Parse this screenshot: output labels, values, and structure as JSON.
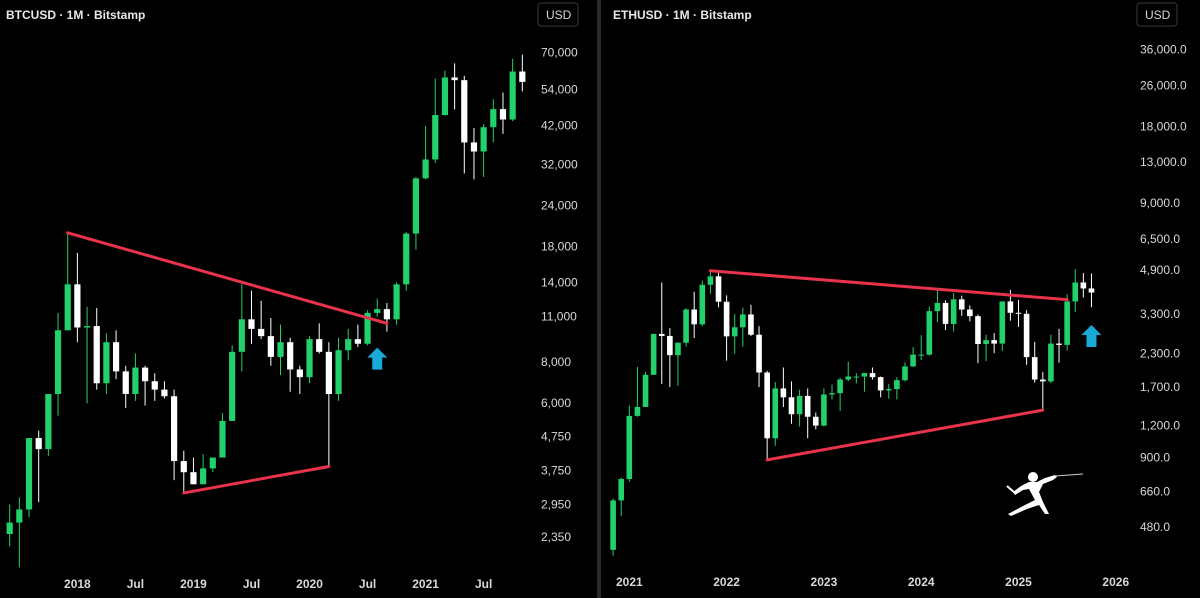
{
  "colors": {
    "up": "#22d16b",
    "down": "#ffffff",
    "trendline": "#e8334a",
    "arrow": "#19a9d6",
    "background": "#000000",
    "divider": "#2a2a2a"
  },
  "logo": {
    "icon": "fencer-icon"
  },
  "chart_data": [
    {
      "type": "candlestick",
      "title": "BTCUSD · 1M · Bitstamp",
      "currency_label": "USD",
      "y_scale": "log",
      "ylim": [
        2000,
        82000
      ],
      "y_ticks": [
        "70,000",
        "54,000",
        "42,000",
        "32,000",
        "24,000",
        "18,000",
        "14,000",
        "11,000",
        "8,000",
        "6,000",
        "4,750",
        "3,750",
        "2,950",
        "2,350"
      ],
      "x_ticks": [
        "2018",
        "Jul",
        "2019",
        "Jul",
        "2020",
        "Jul",
        "2021",
        "Jul"
      ],
      "x_tick_dates": [
        "2018-01",
        "2018-07",
        "2019-01",
        "2019-07",
        "2020-01",
        "2020-07",
        "2021-01",
        "2021-07"
      ],
      "candles": [
        {
          "d": "2017-06",
          "o": 2400,
          "h": 2950,
          "l": 2200,
          "c": 2600
        },
        {
          "d": "2017-07",
          "o": 2600,
          "h": 3100,
          "l": 1900,
          "c": 2850
        },
        {
          "d": "2017-08",
          "o": 2850,
          "h": 4700,
          "l": 2700,
          "c": 4700
        },
        {
          "d": "2017-09",
          "o": 4700,
          "h": 4950,
          "l": 3000,
          "c": 4350
        },
        {
          "d": "2017-10",
          "o": 4350,
          "h": 6400,
          "l": 4150,
          "c": 6400
        },
        {
          "d": "2017-11",
          "o": 6400,
          "h": 11300,
          "l": 5500,
          "c": 10000
        },
        {
          "d": "2017-12",
          "o": 10000,
          "h": 19800,
          "l": 10000,
          "c": 13800
        },
        {
          "d": "2018-01",
          "o": 13800,
          "h": 17200,
          "l": 9200,
          "c": 10200
        },
        {
          "d": "2018-02",
          "o": 10200,
          "h": 11800,
          "l": 6000,
          "c": 10300
        },
        {
          "d": "2018-03",
          "o": 10300,
          "h": 11700,
          "l": 6600,
          "c": 6900
        },
        {
          "d": "2018-04",
          "o": 6900,
          "h": 9800,
          "l": 6400,
          "c": 9200
        },
        {
          "d": "2018-05",
          "o": 9200,
          "h": 10000,
          "l": 7100,
          "c": 7500
        },
        {
          "d": "2018-06",
          "o": 7500,
          "h": 7800,
          "l": 5800,
          "c": 6400
        },
        {
          "d": "2018-07",
          "o": 6400,
          "h": 8500,
          "l": 6100,
          "c": 7700
        },
        {
          "d": "2018-08",
          "o": 7700,
          "h": 7800,
          "l": 5900,
          "c": 7000
        },
        {
          "d": "2018-09",
          "o": 7000,
          "h": 7400,
          "l": 6100,
          "c": 6600
        },
        {
          "d": "2018-10",
          "o": 6600,
          "h": 7000,
          "l": 6200,
          "c": 6300
        },
        {
          "d": "2018-11",
          "o": 6300,
          "h": 6600,
          "l": 3500,
          "c": 4000
        },
        {
          "d": "2018-12",
          "o": 4000,
          "h": 4300,
          "l": 3200,
          "c": 3700
        },
        {
          "d": "2019-01",
          "o": 3700,
          "h": 4100,
          "l": 3400,
          "c": 3400
        },
        {
          "d": "2019-02",
          "o": 3400,
          "h": 4200,
          "l": 3400,
          "c": 3800
        },
        {
          "d": "2019-03",
          "o": 3800,
          "h": 4100,
          "l": 3700,
          "c": 4100
        },
        {
          "d": "2019-04",
          "o": 4100,
          "h": 5600,
          "l": 4100,
          "c": 5300
        },
        {
          "d": "2019-05",
          "o": 5300,
          "h": 9000,
          "l": 5300,
          "c": 8600
        },
        {
          "d": "2019-06",
          "o": 8600,
          "h": 13800,
          "l": 7500,
          "c": 10800
        },
        {
          "d": "2019-07",
          "o": 10800,
          "h": 13200,
          "l": 9100,
          "c": 10100
        },
        {
          "d": "2019-08",
          "o": 10100,
          "h": 12300,
          "l": 9400,
          "c": 9600
        },
        {
          "d": "2019-09",
          "o": 9600,
          "h": 10900,
          "l": 7800,
          "c": 8300
        },
        {
          "d": "2019-10",
          "o": 8300,
          "h": 10400,
          "l": 7300,
          "c": 9200
        },
        {
          "d": "2019-11",
          "o": 9200,
          "h": 9500,
          "l": 6500,
          "c": 7600
        },
        {
          "d": "2019-12",
          "o": 7600,
          "h": 7800,
          "l": 6400,
          "c": 7200
        },
        {
          "d": "2020-01",
          "o": 7200,
          "h": 9600,
          "l": 6900,
          "c": 9400
        },
        {
          "d": "2020-02",
          "o": 9400,
          "h": 10500,
          "l": 8500,
          "c": 8600
        },
        {
          "d": "2020-03",
          "o": 8600,
          "h": 9200,
          "l": 3850,
          "c": 6400
        },
        {
          "d": "2020-04",
          "o": 6400,
          "h": 9500,
          "l": 6100,
          "c": 8700
        },
        {
          "d": "2020-05",
          "o": 8700,
          "h": 10100,
          "l": 8100,
          "c": 9400
        },
        {
          "d": "2020-06",
          "o": 9400,
          "h": 10400,
          "l": 8900,
          "c": 9100
        },
        {
          "d": "2020-07",
          "o": 9100,
          "h": 11500,
          "l": 9000,
          "c": 11300
        },
        {
          "d": "2020-08",
          "o": 11300,
          "h": 12500,
          "l": 11000,
          "c": 11600
        },
        {
          "d": "2020-09",
          "o": 11600,
          "h": 12100,
          "l": 9900,
          "c": 10800
        },
        {
          "d": "2020-10",
          "o": 10800,
          "h": 14000,
          "l": 10400,
          "c": 13800
        },
        {
          "d": "2020-11",
          "o": 13800,
          "h": 19900,
          "l": 13200,
          "c": 19700
        },
        {
          "d": "2020-12",
          "o": 19700,
          "h": 29300,
          "l": 17600,
          "c": 29000
        },
        {
          "d": "2021-01",
          "o": 29000,
          "h": 41900,
          "l": 28800,
          "c": 33100
        },
        {
          "d": "2021-02",
          "o": 33100,
          "h": 58300,
          "l": 32300,
          "c": 45200
        },
        {
          "d": "2021-03",
          "o": 45200,
          "h": 61700,
          "l": 45000,
          "c": 58800
        },
        {
          "d": "2021-04",
          "o": 58800,
          "h": 64900,
          "l": 47000,
          "c": 57700
        },
        {
          "d": "2021-05",
          "o": 57700,
          "h": 59500,
          "l": 30000,
          "c": 37300
        },
        {
          "d": "2021-06",
          "o": 37300,
          "h": 41300,
          "l": 28800,
          "c": 35000
        },
        {
          "d": "2021-07",
          "o": 35000,
          "h": 42400,
          "l": 29300,
          "c": 41500
        },
        {
          "d": "2021-08",
          "o": 41500,
          "h": 50500,
          "l": 37300,
          "c": 47100
        },
        {
          "d": "2021-09",
          "o": 47100,
          "h": 52900,
          "l": 39600,
          "c": 43800
        },
        {
          "d": "2021-10",
          "o": 43800,
          "h": 67000,
          "l": 43300,
          "c": 61300
        },
        {
          "d": "2021-11",
          "o": 61300,
          "h": 69000,
          "l": 53300,
          "c": 57000
        }
      ],
      "trendlines": [
        {
          "from": {
            "d": "2017-12",
            "v": 19800
          },
          "to": {
            "d": "2020-09",
            "v": 10500
          }
        },
        {
          "from": {
            "d": "2018-12",
            "v": 3200
          },
          "to": {
            "d": "2020-03",
            "v": 3850
          }
        }
      ],
      "arrows": [
        {
          "d": "2020-08",
          "v": 8200,
          "direction": "up"
        }
      ]
    },
    {
      "type": "candlestick",
      "title": "ETHUSD · 1M · Bitstamp",
      "currency_label": "USD",
      "y_scale": "log",
      "ylim": [
        340,
        43000
      ],
      "y_ticks": [
        "36,000.0",
        "26,000.0",
        "18,000.0",
        "13,000.0",
        "9,000.0",
        "6,500.0",
        "4,900.0",
        "3,300.0",
        "2,300.0",
        "1,700.0",
        "1,200.0",
        "900.0",
        "660.0",
        "480.0"
      ],
      "x_ticks": [
        "2021",
        "2022",
        "2023",
        "2024",
        "2025",
        "2026"
      ],
      "x_tick_dates": [
        "2021-01",
        "2022-01",
        "2023-01",
        "2024-01",
        "2025-01",
        "2026-01"
      ],
      "candles": [
        {
          "d": "2020-11",
          "o": 390,
          "h": 620,
          "l": 370,
          "c": 610
        },
        {
          "d": "2020-12",
          "o": 610,
          "h": 750,
          "l": 530,
          "c": 740
        },
        {
          "d": "2021-01",
          "o": 740,
          "h": 1440,
          "l": 720,
          "c": 1310
        },
        {
          "d": "2021-02",
          "o": 1310,
          "h": 2040,
          "l": 1300,
          "c": 1420
        },
        {
          "d": "2021-03",
          "o": 1420,
          "h": 1950,
          "l": 1420,
          "c": 1900
        },
        {
          "d": "2021-04",
          "o": 1900,
          "h": 2760,
          "l": 1900,
          "c": 2750
        },
        {
          "d": "2021-05",
          "o": 2750,
          "h": 4380,
          "l": 1750,
          "c": 2700
        },
        {
          "d": "2021-06",
          "o": 2700,
          "h": 2900,
          "l": 1700,
          "c": 2270
        },
        {
          "d": "2021-07",
          "o": 2270,
          "h": 2550,
          "l": 1720,
          "c": 2540
        },
        {
          "d": "2021-08",
          "o": 2540,
          "h": 3470,
          "l": 2450,
          "c": 3430
        },
        {
          "d": "2021-09",
          "o": 3430,
          "h": 4030,
          "l": 2650,
          "c": 3000
        },
        {
          "d": "2021-10",
          "o": 3000,
          "h": 4460,
          "l": 2950,
          "c": 4290
        },
        {
          "d": "2021-11",
          "o": 4290,
          "h": 4870,
          "l": 3960,
          "c": 4630
        },
        {
          "d": "2021-12",
          "o": 4630,
          "h": 4780,
          "l": 3500,
          "c": 3680
        },
        {
          "d": "2022-01",
          "o": 3680,
          "h": 3900,
          "l": 2160,
          "c": 2690
        },
        {
          "d": "2022-02",
          "o": 2690,
          "h": 3290,
          "l": 2300,
          "c": 2920
        },
        {
          "d": "2022-03",
          "o": 2920,
          "h": 3490,
          "l": 2450,
          "c": 3280
        },
        {
          "d": "2022-04",
          "o": 3280,
          "h": 3580,
          "l": 2700,
          "c": 2730
        },
        {
          "d": "2022-05",
          "o": 2730,
          "h": 2950,
          "l": 1700,
          "c": 1940
        },
        {
          "d": "2022-06",
          "o": 1940,
          "h": 1970,
          "l": 880,
          "c": 1070
        },
        {
          "d": "2022-07",
          "o": 1070,
          "h": 1780,
          "l": 1000,
          "c": 1680
        },
        {
          "d": "2022-08",
          "o": 1680,
          "h": 2030,
          "l": 1420,
          "c": 1550
        },
        {
          "d": "2022-09",
          "o": 1550,
          "h": 1790,
          "l": 1220,
          "c": 1330
        },
        {
          "d": "2022-10",
          "o": 1330,
          "h": 1660,
          "l": 1190,
          "c": 1570
        },
        {
          "d": "2022-11",
          "o": 1570,
          "h": 1680,
          "l": 1070,
          "c": 1300
        },
        {
          "d": "2022-12",
          "o": 1300,
          "h": 1350,
          "l": 1160,
          "c": 1200
        },
        {
          "d": "2023-01",
          "o": 1200,
          "h": 1680,
          "l": 1190,
          "c": 1590
        },
        {
          "d": "2023-02",
          "o": 1590,
          "h": 1740,
          "l": 1520,
          "c": 1610
        },
        {
          "d": "2023-03",
          "o": 1610,
          "h": 1850,
          "l": 1370,
          "c": 1820
        },
        {
          "d": "2023-04",
          "o": 1820,
          "h": 2140,
          "l": 1790,
          "c": 1870
        },
        {
          "d": "2023-05",
          "o": 1870,
          "h": 1930,
          "l": 1760,
          "c": 1870
        },
        {
          "d": "2023-06",
          "o": 1870,
          "h": 1930,
          "l": 1630,
          "c": 1930
        },
        {
          "d": "2023-07",
          "o": 1930,
          "h": 2030,
          "l": 1820,
          "c": 1860
        },
        {
          "d": "2023-08",
          "o": 1860,
          "h": 1870,
          "l": 1550,
          "c": 1650
        },
        {
          "d": "2023-09",
          "o": 1650,
          "h": 1750,
          "l": 1530,
          "c": 1670
        },
        {
          "d": "2023-10",
          "o": 1670,
          "h": 1860,
          "l": 1520,
          "c": 1810
        },
        {
          "d": "2023-11",
          "o": 1810,
          "h": 2130,
          "l": 1790,
          "c": 2050
        },
        {
          "d": "2023-12",
          "o": 2050,
          "h": 2440,
          "l": 2040,
          "c": 2280
        },
        {
          "d": "2024-01",
          "o": 2280,
          "h": 2720,
          "l": 2170,
          "c": 2280
        },
        {
          "d": "2024-02",
          "o": 2280,
          "h": 3520,
          "l": 2260,
          "c": 3380
        },
        {
          "d": "2024-03",
          "o": 3380,
          "h": 4090,
          "l": 3060,
          "c": 3640
        },
        {
          "d": "2024-04",
          "o": 3640,
          "h": 3730,
          "l": 2850,
          "c": 3010
        },
        {
          "d": "2024-05",
          "o": 3010,
          "h": 3980,
          "l": 2810,
          "c": 3760
        },
        {
          "d": "2024-06",
          "o": 3760,
          "h": 3890,
          "l": 3240,
          "c": 3430
        },
        {
          "d": "2024-07",
          "o": 3430,
          "h": 3560,
          "l": 3080,
          "c": 3230
        },
        {
          "d": "2024-08",
          "o": 3230,
          "h": 3280,
          "l": 2110,
          "c": 2510
        },
        {
          "d": "2024-09",
          "o": 2510,
          "h": 2730,
          "l": 2150,
          "c": 2600
        },
        {
          "d": "2024-10",
          "o": 2600,
          "h": 2770,
          "l": 2310,
          "c": 2520
        },
        {
          "d": "2024-11",
          "o": 2520,
          "h": 3690,
          "l": 2360,
          "c": 3690
        },
        {
          "d": "2024-12",
          "o": 3690,
          "h": 4100,
          "l": 3100,
          "c": 3330
        },
        {
          "d": "2025-01",
          "o": 3330,
          "h": 3740,
          "l": 2930,
          "c": 3300
        },
        {
          "d": "2025-02",
          "o": 3300,
          "h": 3410,
          "l": 2080,
          "c": 2230
        },
        {
          "d": "2025-03",
          "o": 2230,
          "h": 2560,
          "l": 1770,
          "c": 1820
        },
        {
          "d": "2025-04",
          "o": 1820,
          "h": 1950,
          "l": 1380,
          "c": 1790
        },
        {
          "d": "2025-05",
          "o": 1790,
          "h": 2730,
          "l": 1760,
          "c": 2520
        },
        {
          "d": "2025-06",
          "o": 2520,
          "h": 2880,
          "l": 2120,
          "c": 2490
        },
        {
          "d": "2025-07",
          "o": 2490,
          "h": 3940,
          "l": 2370,
          "c": 3690
        },
        {
          "d": "2025-08",
          "o": 3690,
          "h": 4950,
          "l": 3350,
          "c": 4380
        },
        {
          "d": "2025-09",
          "o": 4380,
          "h": 4770,
          "l": 3820,
          "c": 4150
        },
        {
          "d": "2025-10",
          "o": 4150,
          "h": 4750,
          "l": 3500,
          "c": 4000
        }
      ],
      "trendlines": [
        {
          "from": {
            "d": "2021-11",
            "v": 4870
          },
          "to": {
            "d": "2025-07",
            "v": 3750
          }
        },
        {
          "from": {
            "d": "2022-06",
            "v": 880
          },
          "to": {
            "d": "2025-04",
            "v": 1380
          }
        }
      ],
      "arrows": [
        {
          "d": "2025-10",
          "v": 2700,
          "direction": "up"
        }
      ]
    }
  ]
}
